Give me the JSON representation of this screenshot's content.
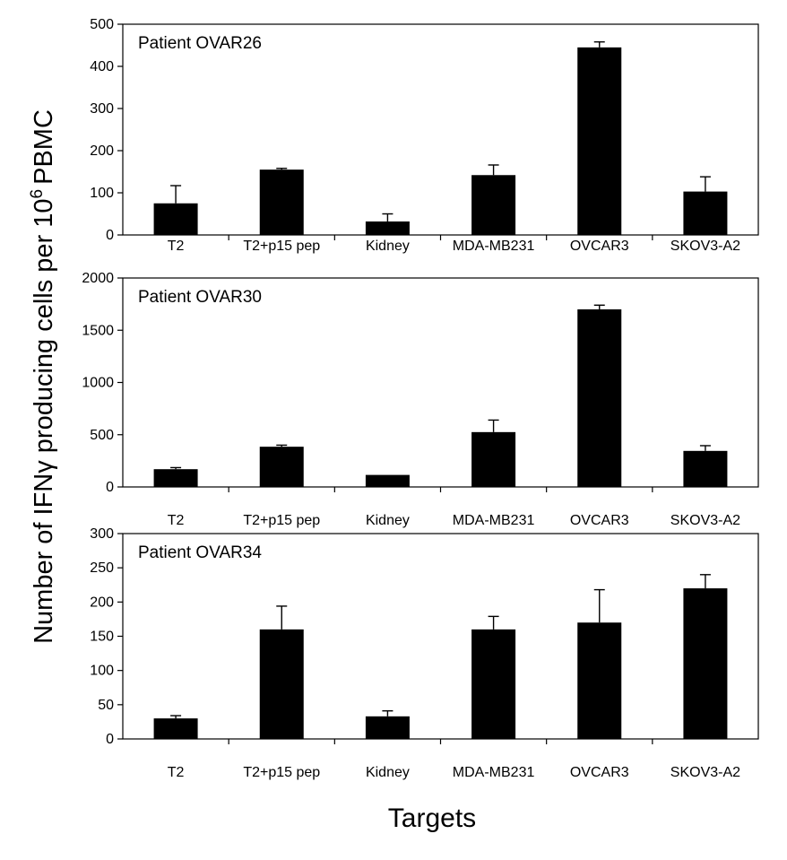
{
  "figure": {
    "ylabel_main": "Number of IFNγ producing cells per 10",
    "ylabel_sup": "6",
    "ylabel_end": "PBMC",
    "xlabel": "Targets"
  },
  "chart_data": [
    {
      "type": "bar",
      "title": "Patient OVAR26",
      "categories": [
        "T2",
        "T2+p15 pep",
        "Kidney",
        "MDA-MB231",
        "OVCAR3",
        "SKOV3-A2"
      ],
      "values": [
        75,
        155,
        32,
        142,
        445,
        103
      ],
      "errors": [
        42,
        3,
        18,
        24,
        13,
        35
      ],
      "ylim": [
        0,
        500
      ],
      "yticks": [
        0,
        100,
        200,
        300,
        400,
        500
      ],
      "xlabel": "",
      "ylabel": ""
    },
    {
      "type": "bar",
      "title": "Patient OVAR30",
      "categories": [
        "T2",
        "T2+p15 pep",
        "Kidney",
        "MDA-MB231",
        "OVCAR3",
        "SKOV3-A2"
      ],
      "values": [
        170,
        385,
        115,
        525,
        1700,
        345
      ],
      "errors": [
        15,
        15,
        0,
        115,
        40,
        50
      ],
      "ylim": [
        0,
        2000
      ],
      "yticks": [
        0,
        500,
        1000,
        1500,
        2000
      ],
      "xlabel": "",
      "ylabel": ""
    },
    {
      "type": "bar",
      "title": "Patient OVAR34",
      "categories": [
        "T2",
        "T2+p15 pep",
        "Kidney",
        "MDA-MB231",
        "OVCAR3",
        "SKOV3-A2"
      ],
      "values": [
        30,
        160,
        33,
        160,
        170,
        220
      ],
      "errors": [
        4,
        34,
        8,
        19,
        48,
        20
      ],
      "ylim": [
        0,
        300
      ],
      "yticks": [
        0,
        50,
        100,
        150,
        200,
        250,
        300
      ],
      "xlabel": "",
      "ylabel": ""
    }
  ]
}
